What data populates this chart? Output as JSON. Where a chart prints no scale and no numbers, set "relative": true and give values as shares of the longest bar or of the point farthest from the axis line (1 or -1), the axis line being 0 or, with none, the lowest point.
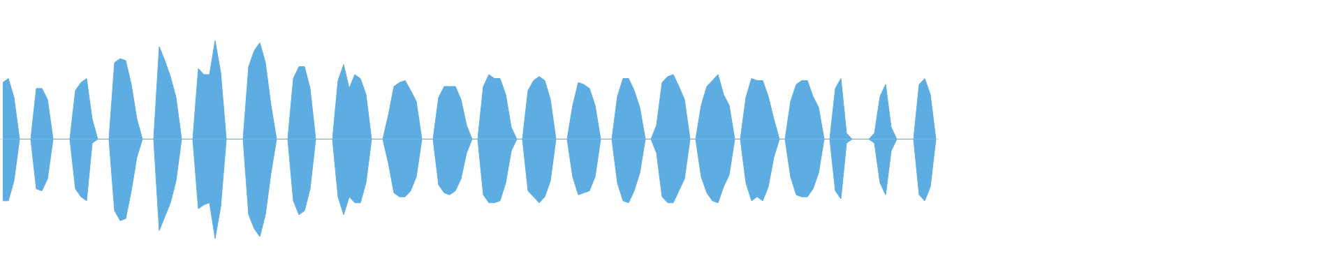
{
  "chart_data": {
    "type": "area",
    "relative": true,
    "categories": [
      null,
      null,
      null,
      null,
      null,
      null,
      null,
      null,
      null,
      null,
      null,
      null,
      null,
      null,
      null,
      null,
      null,
      null,
      null,
      null,
      null,
      null,
      null,
      null,
      null,
      null,
      null,
      null,
      null,
      null,
      null,
      null,
      null,
      null,
      null,
      null,
      null,
      null,
      null,
      null,
      null,
      null,
      null,
      null,
      null,
      null,
      null,
      null,
      null,
      null,
      null,
      null,
      null,
      null,
      null,
      null,
      null,
      null,
      null,
      null,
      null,
      null,
      null,
      null,
      null,
      null,
      null,
      null,
      null,
      null,
      null,
      null,
      null,
      null,
      null,
      null,
      null,
      null,
      null,
      null,
      null,
      null,
      null,
      null,
      null,
      null,
      null,
      null,
      null,
      null,
      null,
      null,
      null,
      null,
      null,
      null,
      null,
      null,
      null,
      null,
      null,
      null,
      null,
      null,
      null,
      null,
      null,
      null,
      null,
      null,
      null,
      null,
      null,
      null,
      null,
      null,
      null,
      null,
      null,
      null,
      null,
      null,
      null,
      null,
      null,
      null,
      null,
      null,
      null,
      null,
      null,
      null,
      null,
      null,
      null,
      null,
      null,
      null,
      null,
      null,
      null,
      null,
      null,
      null,
      null,
      null,
      null,
      null,
      null,
      null,
      null,
      null,
      null,
      null,
      null,
      null,
      null,
      null,
      null,
      null,
      null,
      null,
      null,
      null,
      null,
      null,
      null,
      null
    ],
    "series": [
      {
        "color": "#5dade2",
        "values": [
          0.57,
          0.61,
          0.42,
          0,
          0,
          0,
          0.51,
          0.51,
          0.4,
          0,
          0,
          0,
          0,
          0.49,
          0.57,
          0.61,
          0.2,
          0,
          0,
          0,
          0.77,
          0.81,
          0.79,
          0.55,
          0.2,
          0,
          0,
          0,
          0.93,
          0.79,
          0.63,
          0.42,
          0,
          0,
          0,
          0.71,
          0.65,
          0.65,
          0.99,
          0.67,
          0,
          0,
          0,
          0,
          0.73,
          0.89,
          0.97,
          0.77,
          0.34,
          0,
          0,
          0,
          0.61,
          0.73,
          0.73,
          0.51,
          0,
          0,
          0,
          0,
          0.59,
          0.75,
          0.51,
          0.65,
          0.61,
          0.45,
          0,
          0,
          0,
          0.24,
          0.53,
          0.57,
          0.59,
          0.49,
          0.38,
          0,
          0,
          0,
          0.42,
          0.53,
          0.53,
          0.53,
          0.4,
          0.14,
          0,
          0,
          0.53,
          0.65,
          0.61,
          0.61,
          0.45,
          0.12,
          0,
          0,
          0.49,
          0.59,
          0.63,
          0.59,
          0.4,
          0,
          0,
          0,
          0.34,
          0.57,
          0.55,
          0.51,
          0.34,
          0,
          0,
          0,
          0.43,
          0.61,
          0.61,
          0.49,
          0.32,
          0,
          0,
          0.14,
          0.57,
          0.63,
          0.65,
          0.53,
          0.4,
          0,
          0,
          0.34,
          0.53,
          0.59,
          0.65,
          0.45,
          0.34,
          0,
          0,
          0.42,
          0.61,
          0.59,
          0.59,
          0.43,
          0.2,
          0,
          0,
          0.38,
          0.55,
          0.59,
          0.59,
          0.43,
          0.32,
          0,
          0,
          0.51,
          0.61,
          0.06,
          0,
          0,
          0,
          0,
          0.06,
          0.43,
          0.55,
          0.12,
          0,
          0,
          0,
          0,
          0.55,
          0.61,
          0.45,
          0
        ]
      },
      {
        "color": "#5dade2",
        "values": [
          -0.62,
          -0.62,
          -0.42,
          0,
          0,
          0,
          -0.5,
          -0.52,
          -0.4,
          0,
          0,
          0,
          0,
          -0.5,
          -0.58,
          -0.62,
          -0.04,
          0,
          0,
          0,
          -0.72,
          -0.82,
          -0.8,
          -0.52,
          -0.18,
          0,
          0,
          0,
          -0.92,
          -0.78,
          -0.64,
          -0.42,
          0,
          0,
          0,
          -0.7,
          -0.66,
          -0.64,
          -1,
          -0.68,
          0,
          0,
          0,
          0,
          -0.76,
          -0.9,
          -0.98,
          -0.76,
          -0.34,
          0,
          0,
          0,
          -0.62,
          -0.76,
          -0.72,
          -0.5,
          0,
          0,
          0,
          0,
          -0.58,
          -0.76,
          -0.58,
          -0.64,
          -0.64,
          -0.44,
          0,
          0,
          0,
          -0.24,
          -0.54,
          -0.58,
          -0.58,
          -0.52,
          -0.38,
          0,
          0,
          0,
          -0.46,
          -0.54,
          -0.56,
          -0.52,
          -0.4,
          -0.14,
          0,
          0,
          -0.56,
          -0.64,
          -0.64,
          -0.62,
          -0.44,
          -0.12,
          0,
          0,
          -0.52,
          -0.58,
          -0.64,
          -0.58,
          -0.42,
          0,
          0,
          0,
          -0.38,
          -0.56,
          -0.54,
          -0.52,
          -0.38,
          0,
          0,
          0,
          -0.44,
          -0.62,
          -0.64,
          -0.52,
          -0.34,
          0,
          0,
          -0.14,
          -0.58,
          -0.64,
          -0.64,
          -0.52,
          -0.4,
          0,
          0,
          -0.38,
          -0.54,
          -0.62,
          -0.64,
          -0.48,
          -0.36,
          0,
          0,
          -0.44,
          -0.62,
          -0.58,
          -0.62,
          -0.48,
          -0.18,
          0,
          0,
          -0.38,
          -0.56,
          -0.58,
          -0.58,
          -0.5,
          -0.34,
          0,
          0,
          -0.52,
          -0.6,
          -0.04,
          0,
          0,
          0,
          0,
          -0.04,
          -0.44,
          -0.56,
          -0.12,
          0,
          0,
          0,
          0,
          -0.56,
          -0.62,
          -0.48,
          0
        ]
      }
    ]
  }
}
